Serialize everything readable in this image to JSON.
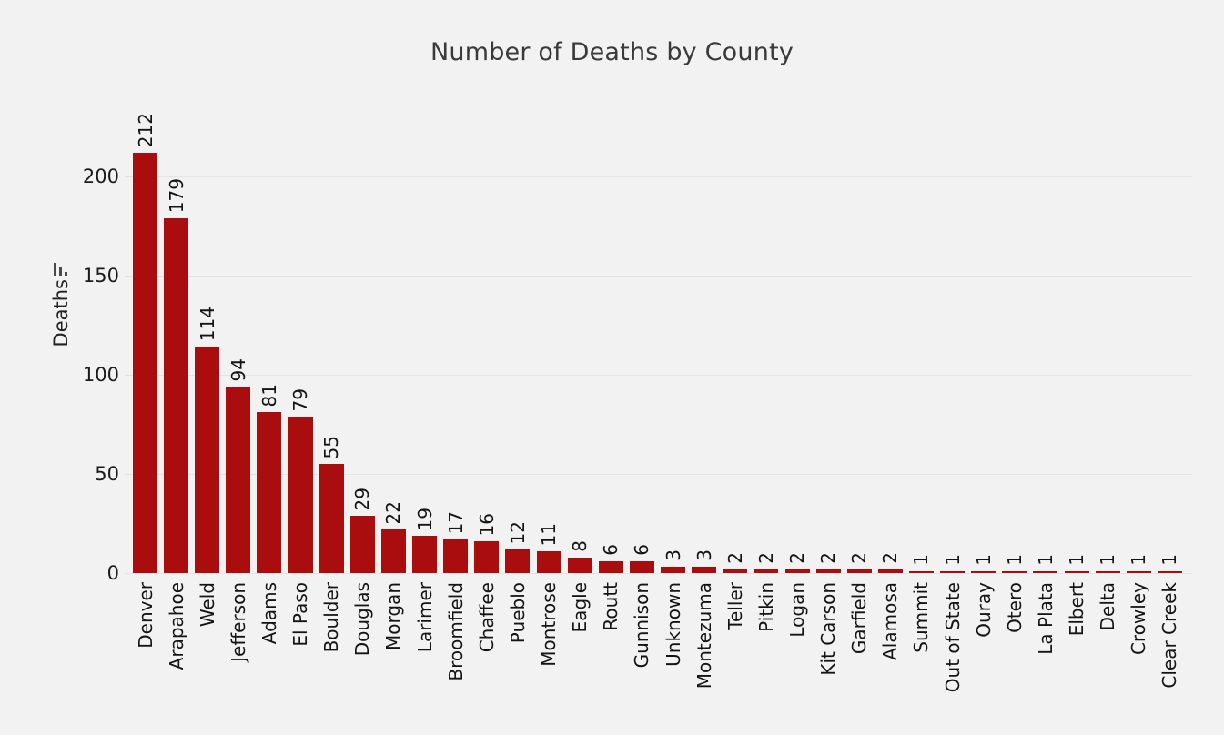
{
  "title": "Number of Deaths by County",
  "y_axis": {
    "label": "Deaths",
    "ticks": [
      0,
      50,
      100,
      150,
      200
    ]
  },
  "chart_data": {
    "type": "bar",
    "title": "Number of Deaths by County",
    "xlabel": "",
    "ylabel": "Deaths",
    "ylim": [
      0,
      217
    ],
    "grid": true,
    "legend": false,
    "bar_color": "#a90d0d",
    "background_color": "#f2f2f2",
    "gridline_color": "#e3e3e3",
    "yticks": [
      0,
      50,
      100,
      150,
      200
    ],
    "categories": [
      "Denver",
      "Arapahoe",
      "Weld",
      "Jefferson",
      "Adams",
      "El Paso",
      "Boulder",
      "Douglas",
      "Morgan",
      "Larimer",
      "Broomfield",
      "Chaffee",
      "Pueblo",
      "Montrose",
      "Eagle",
      "Routt",
      "Gunnison",
      "Unknown",
      "Montezuma",
      "Teller",
      "Pitkin",
      "Logan",
      "Kit Carson",
      "Garfield",
      "Alamosa",
      "Summit",
      "Out of State",
      "Ouray",
      "Otero",
      "La Plata",
      "Elbert",
      "Delta",
      "Crowley",
      "Clear Creek"
    ],
    "values": [
      212,
      179,
      114,
      94,
      81,
      79,
      55,
      29,
      22,
      19,
      17,
      16,
      12,
      11,
      8,
      6,
      6,
      3,
      3,
      2,
      2,
      2,
      2,
      2,
      2,
      1,
      1,
      1,
      1,
      1,
      1,
      1,
      1,
      1
    ]
  }
}
